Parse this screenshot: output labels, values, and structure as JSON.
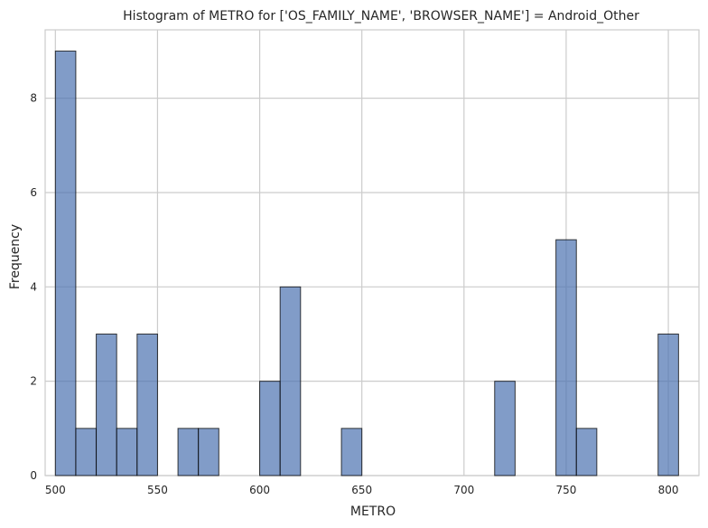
{
  "chart_data": {
    "type": "bar",
    "title": "Histogram of METRO for ['OS_FAMILY_NAME', 'BROWSER_NAME'] = Android_Other",
    "xlabel": "METRO",
    "ylabel": "Frequency",
    "xlim": [
      495,
      815
    ],
    "ylim": [
      0,
      9.45
    ],
    "xticks": [
      500,
      550,
      600,
      650,
      700,
      750,
      800
    ],
    "yticks": [
      0,
      2,
      4,
      6,
      8
    ],
    "grid": true,
    "bins": [
      {
        "x0": 500,
        "x1": 510,
        "count": 9
      },
      {
        "x0": 510,
        "x1": 520,
        "count": 1
      },
      {
        "x0": 520,
        "x1": 530,
        "count": 3
      },
      {
        "x0": 530,
        "x1": 540,
        "count": 1
      },
      {
        "x0": 540,
        "x1": 550,
        "count": 3
      },
      {
        "x0": 560,
        "x1": 570,
        "count": 1
      },
      {
        "x0": 570,
        "x1": 580,
        "count": 1
      },
      {
        "x0": 600,
        "x1": 610,
        "count": 2
      },
      {
        "x0": 610,
        "x1": 620,
        "count": 4
      },
      {
        "x0": 640,
        "x1": 650,
        "count": 1
      },
      {
        "x0": 715,
        "x1": 725,
        "count": 2
      },
      {
        "x0": 745,
        "x1": 755,
        "count": 5
      },
      {
        "x0": 755,
        "x1": 765,
        "count": 1
      },
      {
        "x0": 795,
        "x1": 805,
        "count": 3
      }
    ],
    "bar_color": "#4c72b0"
  }
}
